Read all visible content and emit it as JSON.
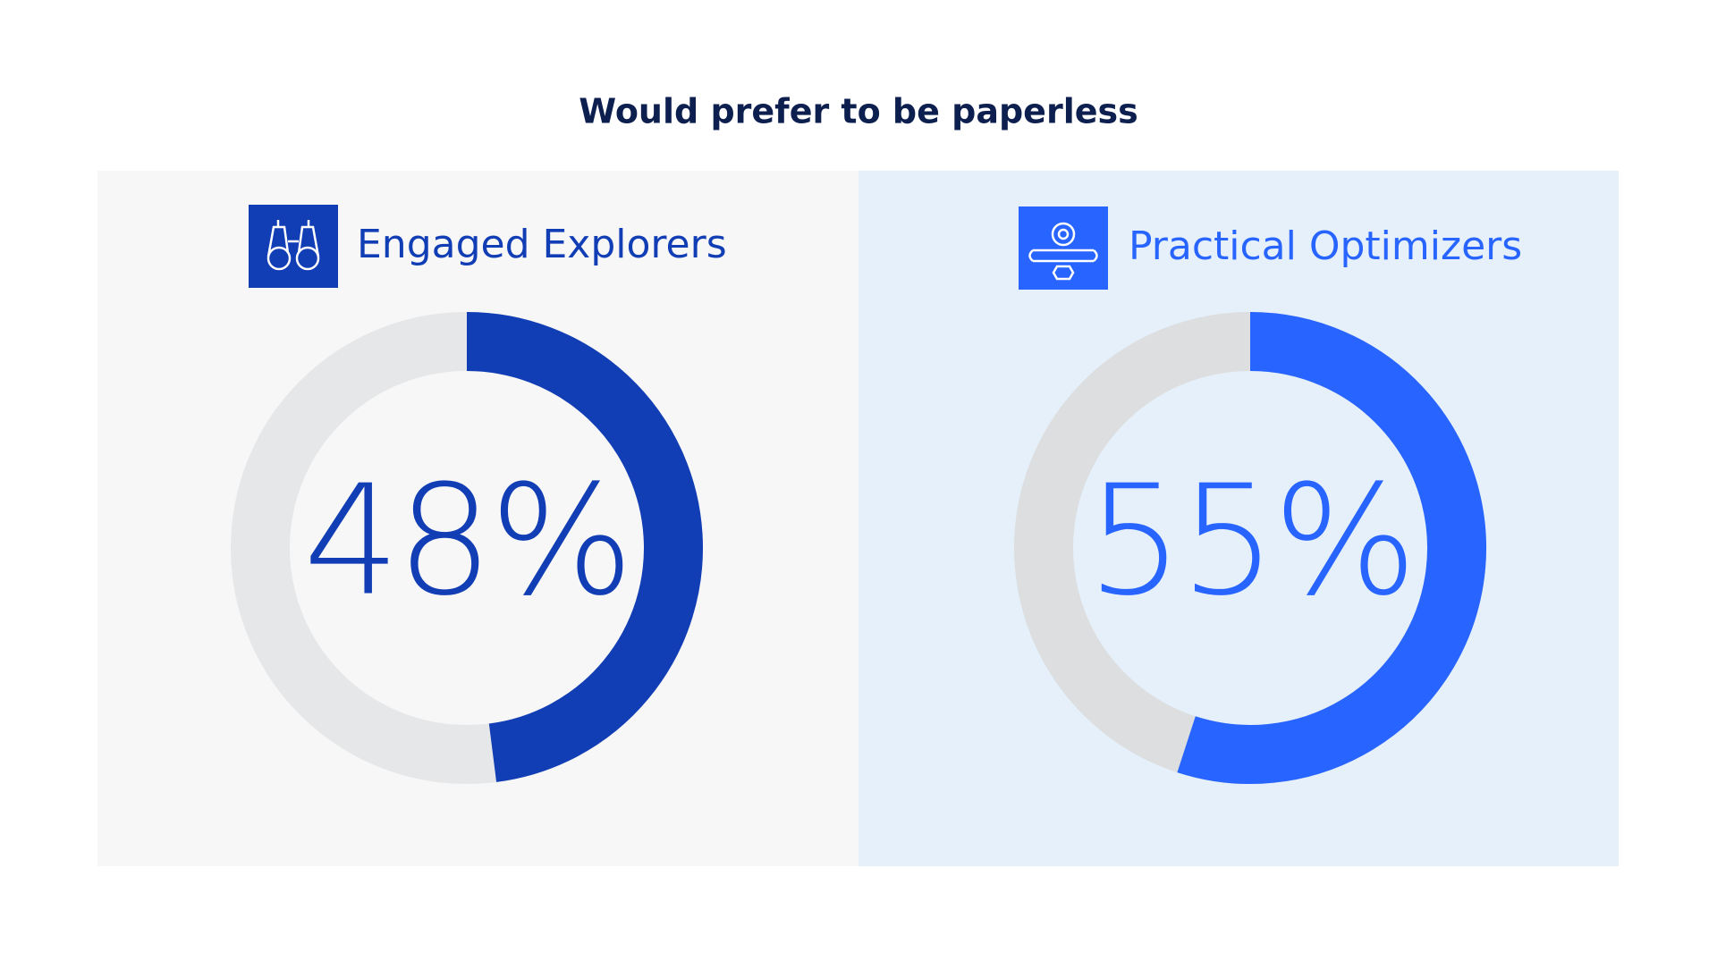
{
  "title": "Would prefer to be paperless",
  "chart_data": [
    {
      "type": "donut",
      "title": "Engaged Explorers",
      "values": [
        48
      ],
      "value_labels": [
        "48%"
      ],
      "ylim": [
        0,
        100
      ],
      "color": "#113db5",
      "track_color": "#e6e7e9",
      "background": "#f7f7f7"
    },
    {
      "type": "donut",
      "title": "Practical Optimizers",
      "values": [
        55
      ],
      "value_labels": [
        "55%"
      ],
      "ylim": [
        0,
        100
      ],
      "color": "#2864ff",
      "track_color": "#dcdedf",
      "background": "#e5f0fa"
    }
  ]
}
